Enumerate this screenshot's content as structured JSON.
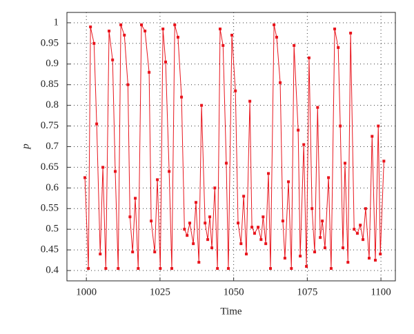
{
  "chart_data": {
    "type": "line",
    "x_label": "Time",
    "y_label": "p",
    "x": [
      999.5,
      1000.7,
      1001.4,
      1002.6,
      1003.5,
      1004.7,
      1005.6,
      1006.6,
      1007.7,
      1008.9,
      1009.8,
      1010.8,
      1011.7,
      1012.9,
      1014.1,
      1014.8,
      1015.7,
      1016.6,
      1017.6,
      1018.7,
      1019.9,
      1021.3,
      1022.0,
      1023.2,
      1024.1,
      1025.1,
      1026.0,
      1026.9,
      1028.1,
      1029.0,
      1030.0,
      1031.1,
      1032.3,
      1033.3,
      1034.2,
      1035.1,
      1036.3,
      1037.2,
      1038.2,
      1039.1,
      1040.3,
      1041.2,
      1041.9,
      1042.6,
      1043.6,
      1044.5,
      1045.4,
      1046.4,
      1047.5,
      1048.2,
      1049.4,
      1050.6,
      1051.5,
      1052.5,
      1053.4,
      1054.3,
      1055.5,
      1056.2,
      1057.1,
      1058.3,
      1059.3,
      1060.0,
      1060.9,
      1061.8,
      1062.5,
      1063.7,
      1064.6,
      1065.8,
      1066.7,
      1067.4,
      1068.6,
      1069.6,
      1070.5,
      1071.9,
      1072.6,
      1073.8,
      1074.7,
      1075.6,
      1076.6,
      1077.5,
      1078.5,
      1079.4,
      1080.1,
      1081.0,
      1082.2,
      1083.1,
      1084.3,
      1085.5,
      1086.2,
      1087.1,
      1087.8,
      1088.8,
      1089.7,
      1090.9,
      1092.0,
      1093.0,
      1093.9,
      1094.8,
      1096.0,
      1097.0,
      1098.1,
      1099.1,
      1099.8,
      1101.0
    ],
    "series": [
      {
        "name": "p",
        "color": "#e8141c",
        "values": [
          0.625,
          0.405,
          0.99,
          0.95,
          0.755,
          0.44,
          0.65,
          0.405,
          0.98,
          0.91,
          0.64,
          0.405,
          0.995,
          0.97,
          0.85,
          0.53,
          0.445,
          0.575,
          0.405,
          0.995,
          0.98,
          0.88,
          0.52,
          0.445,
          0.62,
          0.405,
          0.985,
          0.905,
          0.64,
          0.405,
          0.995,
          0.965,
          0.82,
          0.5,
          0.485,
          0.515,
          0.465,
          0.565,
          0.42,
          0.8,
          0.515,
          0.475,
          0.53,
          0.455,
          0.6,
          0.405,
          0.985,
          0.945,
          0.66,
          0.405,
          0.97,
          0.835,
          0.515,
          0.465,
          0.58,
          0.44,
          0.81,
          0.505,
          0.49,
          0.505,
          0.475,
          0.53,
          0.465,
          0.635,
          0.405,
          0.995,
          0.965,
          0.855,
          0.52,
          0.43,
          0.615,
          0.405,
          0.945,
          0.74,
          0.435,
          0.705,
          0.41,
          0.915,
          0.55,
          0.445,
          0.795,
          0.48,
          0.52,
          0.455,
          0.625,
          0.405,
          0.985,
          0.94,
          0.75,
          0.455,
          0.66,
          0.42,
          0.975,
          0.5,
          0.49,
          0.51,
          0.475,
          0.55,
          0.43,
          0.725,
          0.425,
          0.75,
          0.44,
          0.665
        ]
      }
    ],
    "xlim": [
      993.4,
      1104.9
    ],
    "xticks": [
      1000,
      1025,
      1050,
      1075,
      1100
    ],
    "ylim": [
      0.375,
      1.025
    ],
    "yticks": [
      0.4,
      0.45,
      0.5,
      0.55,
      0.6,
      0.65,
      0.7,
      0.75,
      0.8,
      0.85,
      0.9,
      0.95,
      1
    ],
    "grid": true
  }
}
